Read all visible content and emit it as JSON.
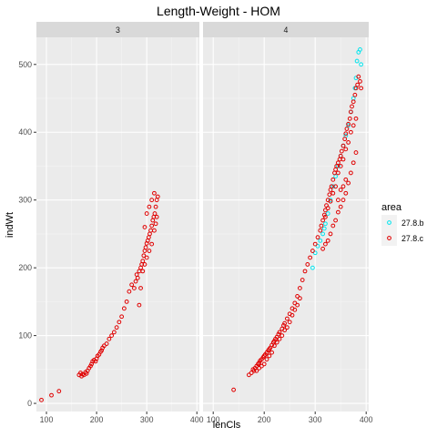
{
  "chart_data": {
    "type": "scatter",
    "title": "Length-Weight - HOM",
    "xlabel": "lenCls",
    "ylabel": "indWt",
    "xlim": [
      80,
      405
    ],
    "ylim": [
      -12,
      540
    ],
    "x_ticks": [
      100,
      200,
      300,
      400
    ],
    "y_ticks": [
      0,
      100,
      200,
      300,
      400,
      500
    ],
    "grid": true,
    "legend": {
      "title": "area",
      "position": "right",
      "entries": [
        {
          "label": "27.8.b",
          "color": "#00e5ee"
        },
        {
          "label": "27.8.c",
          "color": "#e00000"
        }
      ]
    },
    "panels": [
      {
        "label": "3",
        "series": [
          {
            "name": "27.8.c",
            "points": [
              [
                90,
                5
              ],
              [
                110,
                12
              ],
              [
                125,
                18
              ],
              [
                165,
                42
              ],
              [
                168,
                45
              ],
              [
                170,
                40
              ],
              [
                172,
                43
              ],
              [
                175,
                42
              ],
              [
                178,
                46
              ],
              [
                180,
                44
              ],
              [
                182,
                48
              ],
              [
                185,
                52
              ],
              [
                188,
                55
              ],
              [
                190,
                58
              ],
              [
                192,
                62
              ],
              [
                195,
                64
              ],
              [
                198,
                62
              ],
              [
                200,
                66
              ],
              [
                202,
                70
              ],
              [
                205,
                72
              ],
              [
                208,
                76
              ],
              [
                210,
                78
              ],
              [
                212,
                82
              ],
              [
                215,
                85
              ],
              [
                220,
                88
              ],
              [
                225,
                95
              ],
              [
                230,
                100
              ],
              [
                235,
                105
              ],
              [
                240,
                112
              ],
              [
                245,
                120
              ],
              [
                250,
                128
              ],
              [
                255,
                140
              ],
              [
                260,
                150
              ],
              [
                265,
                165
              ],
              [
                270,
                175
              ],
              [
                275,
                170
              ],
              [
                278,
                180
              ],
              [
                280,
                190
              ],
              [
                282,
                185
              ],
              [
                285,
                195
              ],
              [
                288,
                200
              ],
              [
                290,
                205
              ],
              [
                292,
                210
              ],
              [
                294,
                218
              ],
              [
                296,
                225
              ],
              [
                298,
                230
              ],
              [
                300,
                236
              ],
              [
                302,
                240
              ],
              [
                304,
                245
              ],
              [
                306,
                250
              ],
              [
                308,
                255
              ],
              [
                310,
                262
              ],
              [
                312,
                270
              ],
              [
                314,
                275
              ],
              [
                316,
                280
              ],
              [
                318,
                290
              ],
              [
                320,
                300
              ],
              [
                322,
                305
              ],
              [
                310,
                235
              ],
              [
                305,
                225
              ],
              [
                300,
                215
              ],
              [
                296,
                205
              ],
              [
                292,
                195
              ],
              [
                288,
                170
              ],
              [
                285,
                145
              ],
              [
                315,
                255
              ],
              [
                318,
                265
              ],
              [
                320,
                275
              ],
              [
                296,
                260
              ],
              [
                300,
                280
              ],
              [
                305,
                290
              ],
              [
                310,
                300
              ],
              [
                315,
                310
              ]
            ]
          }
        ]
      },
      {
        "label": "4",
        "series": [
          {
            "name": "27.8.b",
            "points": [
              [
                295,
                200
              ],
              [
                300,
                222
              ],
              [
                305,
                232
              ],
              [
                310,
                240
              ],
              [
                315,
                250
              ],
              [
                318,
                258
              ],
              [
                320,
                265
              ],
              [
                325,
                280
              ],
              [
                330,
                300
              ],
              [
                335,
                320
              ],
              [
                340,
                335
              ],
              [
                345,
                350
              ],
              [
                350,
                365
              ],
              [
                355,
                380
              ],
              [
                360,
                395
              ],
              [
                365,
                410
              ],
              [
                370,
                430
              ],
              [
                375,
                450
              ],
              [
                378,
                465
              ],
              [
                380,
                480
              ],
              [
                382,
                505
              ],
              [
                385,
                518
              ],
              [
                388,
                522
              ],
              [
                390,
                500
              ]
            ]
          },
          {
            "name": "27.8.c",
            "points": [
              [
                140,
                20
              ],
              [
                170,
                42
              ],
              [
                175,
                45
              ],
              [
                178,
                50
              ],
              [
                180,
                48
              ],
              [
                182,
                52
              ],
              [
                185,
                55
              ],
              [
                188,
                58
              ],
              [
                190,
                60
              ],
              [
                192,
                63
              ],
              [
                195,
                65
              ],
              [
                198,
                68
              ],
              [
                200,
                70
              ],
              [
                202,
                72
              ],
              [
                205,
                75
              ],
              [
                208,
                78
              ],
              [
                210,
                80
              ],
              [
                212,
                82
              ],
              [
                215,
                86
              ],
              [
                218,
                90
              ],
              [
                220,
                92
              ],
              [
                222,
                95
              ],
              [
                225,
                98
              ],
              [
                228,
                102
              ],
              [
                230,
                105
              ],
              [
                235,
                110
              ],
              [
                238,
                115
              ],
              [
                240,
                118
              ],
              [
                245,
                125
              ],
              [
                250,
                132
              ],
              [
                255,
                140
              ],
              [
                260,
                148
              ],
              [
                265,
                158
              ],
              [
                270,
                170
              ],
              [
                275,
                182
              ],
              [
                280,
                195
              ],
              [
                285,
                205
              ],
              [
                290,
                215
              ],
              [
                295,
                225
              ],
              [
                300,
                235
              ],
              [
                305,
                245
              ],
              [
                310,
                255
              ],
              [
                312,
                262
              ],
              [
                315,
                270
              ],
              [
                318,
                278
              ],
              [
                320,
                285
              ],
              [
                322,
                292
              ],
              [
                325,
                300
              ],
              [
                328,
                308
              ],
              [
                330,
                315
              ],
              [
                332,
                320
              ],
              [
                335,
                330
              ],
              [
                338,
                340
              ],
              [
                340,
                345
              ],
              [
                342,
                350
              ],
              [
                345,
                355
              ],
              [
                348,
                360
              ],
              [
                350,
                365
              ],
              [
                352,
                372
              ],
              [
                355,
                380
              ],
              [
                358,
                390
              ],
              [
                360,
                398
              ],
              [
                362,
                405
              ],
              [
                365,
                412
              ],
              [
                368,
                420
              ],
              [
                370,
                430
              ],
              [
                372,
                438
              ],
              [
                375,
                445
              ],
              [
                378,
                455
              ],
              [
                380,
                465
              ],
              [
                383,
                470
              ],
              [
                385,
                482
              ],
              [
                388,
                475
              ],
              [
                390,
                465
              ],
              [
                325,
                240
              ],
              [
                320,
                235
              ],
              [
                315,
                228
              ],
              [
                330,
                250
              ],
              [
                335,
                262
              ],
              [
                340,
                270
              ],
              [
                345,
                282
              ],
              [
                350,
                290
              ],
              [
                355,
                300
              ],
              [
                360,
                310
              ],
              [
                365,
                325
              ],
              [
                370,
                340
              ],
              [
                375,
                355
              ],
              [
                380,
                370
              ],
              [
                345,
                340
              ],
              [
                350,
                350
              ],
              [
                340,
                320
              ],
              [
                335,
                310
              ],
              [
                330,
                298
              ],
              [
                325,
                288
              ],
              [
                320,
                275
              ],
              [
                355,
                360
              ],
              [
                360,
                375
              ],
              [
                365,
                385
              ],
              [
                370,
                400
              ],
              [
                375,
                410
              ],
              [
                380,
                420
              ],
              [
                360,
                330
              ],
              [
                355,
                320
              ],
              [
                350,
                315
              ],
              [
                345,
                300
              ],
              [
                215,
                75
              ],
              [
                220,
                85
              ],
              [
                225,
                90
              ],
              [
                230,
                95
              ],
              [
                235,
                100
              ],
              [
                240,
                108
              ],
              [
                245,
                112
              ],
              [
                250,
                120
              ],
              [
                200,
                58
              ],
              [
                195,
                55
              ],
              [
                190,
                52
              ],
              [
                185,
                48
              ],
              [
                205,
                65
              ],
              [
                210,
                70
              ],
              [
                255,
                130
              ],
              [
                260,
                138
              ],
              [
                265,
                145
              ],
              [
                270,
                155
              ]
            ]
          }
        ]
      }
    ]
  }
}
